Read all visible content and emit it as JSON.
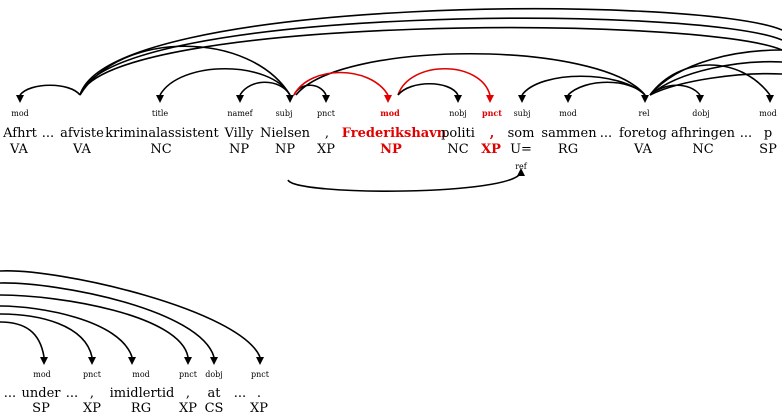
{
  "highlight_color": "#e00000",
  "row1": {
    "tokens": [
      {
        "word": "Afhrt",
        "tag": "VA",
        "label": "mod"
      },
      {
        "word": "...",
        "tag": "",
        "label": ""
      },
      {
        "word": "afviste",
        "tag": "VA",
        "label": ""
      },
      {
        "word": "kriminalassistent",
        "tag": "NC",
        "label": "title"
      },
      {
        "word": "Villy",
        "tag": "NP",
        "label": "namef"
      },
      {
        "word": "Nielsen",
        "tag": "NP",
        "label": "subj"
      },
      {
        "word": ",",
        "tag": "XP",
        "label": "pnct"
      },
      {
        "word": "Frederikshavn",
        "tag": "NP",
        "label": "mod",
        "highlight": true
      },
      {
        "word": "politi",
        "tag": "NC",
        "label": "nobj"
      },
      {
        "word": ",",
        "tag": "XP",
        "label": "pnct",
        "highlight": true
      },
      {
        "word": "som",
        "tag": "U=",
        "label": "subj"
      },
      {
        "word": "sammen",
        "tag": "RG",
        "label": "mod"
      },
      {
        "word": "...",
        "tag": "",
        "label": ""
      },
      {
        "word": "foretog",
        "tag": "VA",
        "label": "rel"
      },
      {
        "word": "afhringen",
        "tag": "NC",
        "label": "dobj"
      },
      {
        "word": "...",
        "tag": "",
        "label": ""
      },
      {
        "word": "p",
        "tag": "SP",
        "label": "mod"
      }
    ],
    "secondary_label": "ref"
  },
  "row2": {
    "tokens": [
      {
        "word": "...",
        "tag": "",
        "label": ""
      },
      {
        "word": "under",
        "tag": "SP",
        "label": "mod"
      },
      {
        "word": "...",
        "tag": "",
        "label": ""
      },
      {
        "word": ",",
        "tag": "XP",
        "label": "pnct"
      },
      {
        "word": "imidlertid",
        "tag": "RG",
        "label": "mod"
      },
      {
        "word": ",",
        "tag": "XP",
        "label": "pnct"
      },
      {
        "word": "at",
        "tag": "CS",
        "label": "dobj"
      },
      {
        "word": "...",
        "tag": "",
        "label": ""
      },
      {
        "word": ".",
        "tag": "XP",
        "label": "pnct"
      }
    ]
  }
}
